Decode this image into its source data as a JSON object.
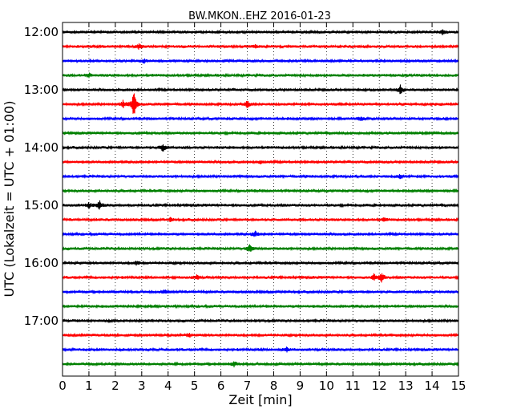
{
  "chart_data": {
    "type": "line",
    "title": "BW.MKON..EHZ 2016-01-23",
    "xlabel": "Zeit  [min]",
    "ylabel": "UTC (Lokalzeit = UTC + 01:00)",
    "xlim": [
      0,
      15
    ],
    "x_ticks": [
      "0",
      "1",
      "2",
      "3",
      "4",
      "5",
      "6",
      "7",
      "8",
      "9",
      "10",
      "11",
      "12",
      "13",
      "14",
      "15"
    ],
    "y_tick_labels": [
      "12:00",
      "13:00",
      "14:00",
      "15:00",
      "16:00",
      "17:00"
    ],
    "grid": "vertical dotted",
    "traces_per_hour": 4,
    "trace_minutes": 15,
    "colors": [
      "#000000",
      "#ff0000",
      "#0000ff",
      "#008000"
    ],
    "series": [
      {
        "start": "12:00",
        "events": [
          {
            "t": 14.4,
            "amp": 0.35
          }
        ]
      },
      {
        "start": "12:15",
        "events": [
          {
            "t": 2.9,
            "amp": 0.3
          },
          {
            "t": 7.3,
            "amp": 0.25
          }
        ]
      },
      {
        "start": "12:30",
        "events": [
          {
            "t": 3.1,
            "amp": 0.25
          }
        ]
      },
      {
        "start": "12:45",
        "events": [
          {
            "t": 1.0,
            "amp": 0.3
          }
        ]
      },
      {
        "start": "13:00",
        "events": [
          {
            "t": 12.8,
            "amp": 0.6
          }
        ]
      },
      {
        "start": "13:15",
        "events": [
          {
            "t": 2.3,
            "amp": 0.5
          },
          {
            "t": 2.7,
            "amp": 1.8
          },
          {
            "t": 7.0,
            "amp": 0.45
          }
        ]
      },
      {
        "start": "13:30",
        "events": [
          {
            "t": 11.3,
            "amp": 0.25
          }
        ]
      },
      {
        "start": "13:45",
        "events": []
      },
      {
        "start": "14:00",
        "events": [
          {
            "t": 3.8,
            "amp": 0.55
          }
        ]
      },
      {
        "start": "14:15",
        "events": [
          {
            "t": 7.5,
            "amp": 0.2
          }
        ]
      },
      {
        "start": "14:30",
        "events": [
          {
            "t": 12.8,
            "amp": 0.25
          }
        ]
      },
      {
        "start": "14:45",
        "events": []
      },
      {
        "start": "15:00",
        "events": [
          {
            "t": 1.0,
            "amp": 0.35
          },
          {
            "t": 1.4,
            "amp": 0.6
          }
        ]
      },
      {
        "start": "15:15",
        "events": [
          {
            "t": 4.1,
            "amp": 0.25
          },
          {
            "t": 12.2,
            "amp": 0.2
          }
        ]
      },
      {
        "start": "15:30",
        "events": [
          {
            "t": 7.3,
            "amp": 0.35
          }
        ]
      },
      {
        "start": "15:45",
        "events": [
          {
            "t": 7.1,
            "amp": 0.5
          }
        ]
      },
      {
        "start": "16:00",
        "events": [
          {
            "t": 2.8,
            "amp": 0.25
          }
        ]
      },
      {
        "start": "16:15",
        "events": [
          {
            "t": 5.1,
            "amp": 0.3
          },
          {
            "t": 11.8,
            "amp": 0.4
          },
          {
            "t": 12.1,
            "amp": 0.7
          }
        ]
      },
      {
        "start": "16:30",
        "events": [
          {
            "t": 3.9,
            "amp": 0.25
          }
        ]
      },
      {
        "start": "16:45",
        "events": []
      },
      {
        "start": "17:00",
        "events": []
      },
      {
        "start": "17:15",
        "events": [
          {
            "t": 4.8,
            "amp": 0.2
          }
        ]
      },
      {
        "start": "17:30",
        "events": [
          {
            "t": 8.5,
            "amp": 0.35
          }
        ]
      },
      {
        "start": "17:45",
        "events": [
          {
            "t": 6.5,
            "amp": 0.3
          }
        ]
      }
    ]
  }
}
